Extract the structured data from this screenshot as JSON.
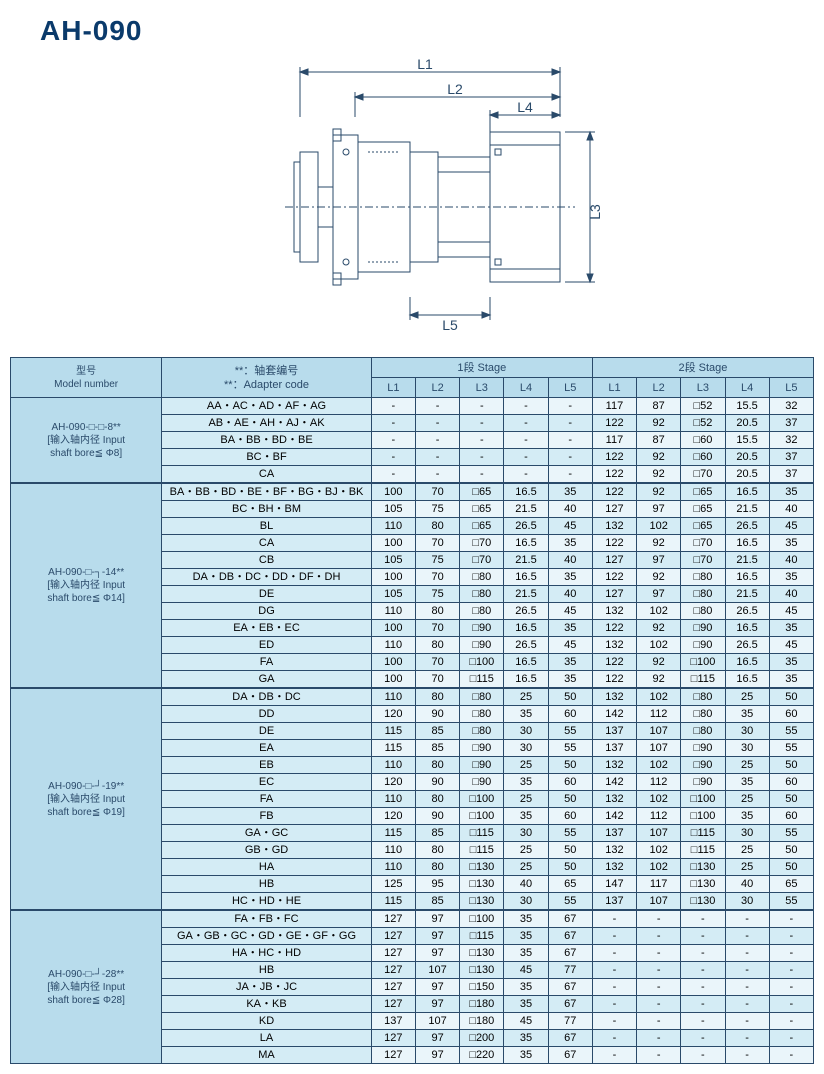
{
  "title": "AH-090",
  "diagram": {
    "labels": [
      "L1",
      "L2",
      "L3",
      "L4",
      "L5"
    ]
  },
  "table": {
    "headers": {
      "model": "型号\nModel number",
      "adapter": "**：轴套编号\n**：Adapter code",
      "stage1": "1段 Stage",
      "stage2": "2段 Stage",
      "cols": [
        "L1",
        "L2",
        "L3",
        "L4",
        "L5"
      ]
    },
    "groups": [
      {
        "model": "AH-090-□-□-8**\n[输入轴内径 Input\nshaft bore≦ Φ8]",
        "rows": [
          {
            "adapter": "AA・AC・AD・AF・AG",
            "s1": [
              "-",
              "-",
              "-",
              "-",
              "-"
            ],
            "s2": [
              "117",
              "87",
              "□52",
              "15.5",
              "32"
            ]
          },
          {
            "adapter": "AB・AE・AH・AJ・AK",
            "s1": [
              "-",
              "-",
              "-",
              "-",
              "-"
            ],
            "s2": [
              "122",
              "92",
              "□52",
              "20.5",
              "37"
            ]
          },
          {
            "adapter": "BA・BB・BD・BE",
            "s1": [
              "-",
              "-",
              "-",
              "-",
              "-"
            ],
            "s2": [
              "117",
              "87",
              "□60",
              "15.5",
              "32"
            ]
          },
          {
            "adapter": "BC・BF",
            "s1": [
              "-",
              "-",
              "-",
              "-",
              "-"
            ],
            "s2": [
              "122",
              "92",
              "□60",
              "20.5",
              "37"
            ]
          },
          {
            "adapter": "CA",
            "s1": [
              "-",
              "-",
              "-",
              "-",
              "-"
            ],
            "s2": [
              "122",
              "92",
              "□70",
              "20.5",
              "37"
            ]
          }
        ]
      },
      {
        "model": "AH-090-□-┐-14**\n[输入轴内径 Input\nshaft bore≦ Φ14]",
        "rows": [
          {
            "adapter": "BA・BB・BD・BE・BF・BG・BJ・BK",
            "s1": [
              "100",
              "70",
              "□65",
              "16.5",
              "35"
            ],
            "s2": [
              "122",
              "92",
              "□65",
              "16.5",
              "35"
            ]
          },
          {
            "adapter": "BC・BH・BM",
            "s1": [
              "105",
              "75",
              "□65",
              "21.5",
              "40"
            ],
            "s2": [
              "127",
              "97",
              "□65",
              "21.5",
              "40"
            ]
          },
          {
            "adapter": "BL",
            "s1": [
              "110",
              "80",
              "□65",
              "26.5",
              "45"
            ],
            "s2": [
              "132",
              "102",
              "□65",
              "26.5",
              "45"
            ]
          },
          {
            "adapter": "CA",
            "s1": [
              "100",
              "70",
              "□70",
              "16.5",
              "35"
            ],
            "s2": [
              "122",
              "92",
              "□70",
              "16.5",
              "35"
            ]
          },
          {
            "adapter": "CB",
            "s1": [
              "105",
              "75",
              "□70",
              "21.5",
              "40"
            ],
            "s2": [
              "127",
              "97",
              "□70",
              "21.5",
              "40"
            ]
          },
          {
            "adapter": "DA・DB・DC・DD・DF・DH",
            "s1": [
              "100",
              "70",
              "□80",
              "16.5",
              "35"
            ],
            "s2": [
              "122",
              "92",
              "□80",
              "16.5",
              "35"
            ]
          },
          {
            "adapter": "DE",
            "s1": [
              "105",
              "75",
              "□80",
              "21.5",
              "40"
            ],
            "s2": [
              "127",
              "97",
              "□80",
              "21.5",
              "40"
            ]
          },
          {
            "adapter": "DG",
            "s1": [
              "110",
              "80",
              "□80",
              "26.5",
              "45"
            ],
            "s2": [
              "132",
              "102",
              "□80",
              "26.5",
              "45"
            ]
          },
          {
            "adapter": "EA・EB・EC",
            "s1": [
              "100",
              "70",
              "□90",
              "16.5",
              "35"
            ],
            "s2": [
              "122",
              "92",
              "□90",
              "16.5",
              "35"
            ]
          },
          {
            "adapter": "ED",
            "s1": [
              "110",
              "80",
              "□90",
              "26.5",
              "45"
            ],
            "s2": [
              "132",
              "102",
              "□90",
              "26.5",
              "45"
            ]
          },
          {
            "adapter": "FA",
            "s1": [
              "100",
              "70",
              "□100",
              "16.5",
              "35"
            ],
            "s2": [
              "122",
              "92",
              "□100",
              "16.5",
              "35"
            ]
          },
          {
            "adapter": "GA",
            "s1": [
              "100",
              "70",
              "□115",
              "16.5",
              "35"
            ],
            "s2": [
              "122",
              "92",
              "□115",
              "16.5",
              "35"
            ]
          }
        ]
      },
      {
        "model": "AH-090-□-┘-19**\n[输入轴内径 Input\nshaft bore≦ Φ19]",
        "rows": [
          {
            "adapter": "DA・DB・DC",
            "s1": [
              "110",
              "80",
              "□80",
              "25",
              "50"
            ],
            "s2": [
              "132",
              "102",
              "□80",
              "25",
              "50"
            ]
          },
          {
            "adapter": "DD",
            "s1": [
              "120",
              "90",
              "□80",
              "35",
              "60"
            ],
            "s2": [
              "142",
              "112",
              "□80",
              "35",
              "60"
            ]
          },
          {
            "adapter": "DE",
            "s1": [
              "115",
              "85",
              "□80",
              "30",
              "55"
            ],
            "s2": [
              "137",
              "107",
              "□80",
              "30",
              "55"
            ]
          },
          {
            "adapter": "EA",
            "s1": [
              "115",
              "85",
              "□90",
              "30",
              "55"
            ],
            "s2": [
              "137",
              "107",
              "□90",
              "30",
              "55"
            ]
          },
          {
            "adapter": "EB",
            "s1": [
              "110",
              "80",
              "□90",
              "25",
              "50"
            ],
            "s2": [
              "132",
              "102",
              "□90",
              "25",
              "50"
            ]
          },
          {
            "adapter": "EC",
            "s1": [
              "120",
              "90",
              "□90",
              "35",
              "60"
            ],
            "s2": [
              "142",
              "112",
              "□90",
              "35",
              "60"
            ]
          },
          {
            "adapter": "FA",
            "s1": [
              "110",
              "80",
              "□100",
              "25",
              "50"
            ],
            "s2": [
              "132",
              "102",
              "□100",
              "25",
              "50"
            ]
          },
          {
            "adapter": "FB",
            "s1": [
              "120",
              "90",
              "□100",
              "35",
              "60"
            ],
            "s2": [
              "142",
              "112",
              "□100",
              "35",
              "60"
            ]
          },
          {
            "adapter": "GA・GC",
            "s1": [
              "115",
              "85",
              "□115",
              "30",
              "55"
            ],
            "s2": [
              "137",
              "107",
              "□115",
              "30",
              "55"
            ]
          },
          {
            "adapter": "GB・GD",
            "s1": [
              "110",
              "80",
              "□115",
              "25",
              "50"
            ],
            "s2": [
              "132",
              "102",
              "□115",
              "25",
              "50"
            ]
          },
          {
            "adapter": "HA",
            "s1": [
              "110",
              "80",
              "□130",
              "25",
              "50"
            ],
            "s2": [
              "132",
              "102",
              "□130",
              "25",
              "50"
            ]
          },
          {
            "adapter": "HB",
            "s1": [
              "125",
              "95",
              "□130",
              "40",
              "65"
            ],
            "s2": [
              "147",
              "117",
              "□130",
              "40",
              "65"
            ]
          },
          {
            "adapter": "HC・HD・HE",
            "s1": [
              "115",
              "85",
              "□130",
              "30",
              "55"
            ],
            "s2": [
              "137",
              "107",
              "□130",
              "30",
              "55"
            ]
          }
        ]
      },
      {
        "model": "AH-090-□-┘-28**\n[输入轴内径 Input\nshaft bore≦ Φ28]",
        "rows": [
          {
            "adapter": "FA・FB・FC",
            "s1": [
              "127",
              "97",
              "□100",
              "35",
              "67"
            ],
            "s2": [
              "-",
              "-",
              "-",
              "-",
              "-"
            ]
          },
          {
            "adapter": "GA・GB・GC・GD・GE・GF・GG",
            "s1": [
              "127",
              "97",
              "□115",
              "35",
              "67"
            ],
            "s2": [
              "-",
              "-",
              "-",
              "-",
              "-"
            ]
          },
          {
            "adapter": "HA・HC・HD",
            "s1": [
              "127",
              "97",
              "□130",
              "35",
              "67"
            ],
            "s2": [
              "-",
              "-",
              "-",
              "-",
              "-"
            ]
          },
          {
            "adapter": "HB",
            "s1": [
              "127",
              "107",
              "□130",
              "45",
              "77"
            ],
            "s2": [
              "-",
              "-",
              "-",
              "-",
              "-"
            ]
          },
          {
            "adapter": "JA・JB・JC",
            "s1": [
              "127",
              "97",
              "□150",
              "35",
              "67"
            ],
            "s2": [
              "-",
              "-",
              "-",
              "-",
              "-"
            ]
          },
          {
            "adapter": "KA・KB",
            "s1": [
              "127",
              "97",
              "□180",
              "35",
              "67"
            ],
            "s2": [
              "-",
              "-",
              "-",
              "-",
              "-"
            ]
          },
          {
            "adapter": "KD",
            "s1": [
              "137",
              "107",
              "□180",
              "45",
              "77"
            ],
            "s2": [
              "-",
              "-",
              "-",
              "-",
              "-"
            ]
          },
          {
            "adapter": "LA",
            "s1": [
              "127",
              "97",
              "□200",
              "35",
              "67"
            ],
            "s2": [
              "-",
              "-",
              "-",
              "-",
              "-"
            ]
          },
          {
            "adapter": "MA",
            "s1": [
              "127",
              "97",
              "□220",
              "35",
              "67"
            ],
            "s2": [
              "-",
              "-",
              "-",
              "-",
              "-"
            ]
          }
        ]
      }
    ]
  }
}
